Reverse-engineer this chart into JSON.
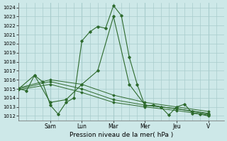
{
  "xlabel": "Pression niveau de la mer( hPa )",
  "background_color": "#cde8e8",
  "grid_color": "#a8cccc",
  "line_color": "#2d6a2d",
  "ylim": [
    1011.5,
    1024.5
  ],
  "yticks": [
    1012,
    1013,
    1014,
    1015,
    1016,
    1017,
    1018,
    1019,
    1020,
    1021,
    1022,
    1023,
    1024
  ],
  "day_labels": [
    "Sam",
    "Lun",
    "Mar",
    "Mer",
    "Jeu",
    "V"
  ],
  "day_positions": [
    24,
    48,
    72,
    96,
    120,
    144
  ],
  "xlim": [
    0,
    156
  ],
  "series1_x": [
    0,
    6,
    12,
    18,
    24,
    30,
    36,
    42,
    48,
    54,
    60,
    66,
    72,
    78,
    84,
    90,
    96,
    102,
    108,
    114,
    120,
    126,
    132,
    138,
    144
  ],
  "series1_y": [
    1015.0,
    1014.8,
    1016.5,
    1015.8,
    1013.2,
    1012.2,
    1013.5,
    1014.0,
    1020.3,
    1021.3,
    1021.9,
    1021.7,
    1024.2,
    1023.1,
    1018.5,
    1015.5,
    1013.1,
    1013.2,
    1013.0,
    1012.1,
    1013.0,
    1013.3,
    1012.3,
    1012.2,
    1012.0
  ],
  "series2_x": [
    0,
    12,
    24,
    36,
    48,
    60,
    72,
    84,
    96,
    108,
    120,
    132,
    144
  ],
  "series2_y": [
    1015.0,
    1016.5,
    1013.5,
    1013.8,
    1015.5,
    1017.0,
    1023.0,
    1015.5,
    1013.2,
    1013.0,
    1012.8,
    1012.5,
    1012.2
  ],
  "series3_x": [
    0,
    24,
    48,
    72,
    96,
    120,
    144
  ],
  "series3_y": [
    1015.1,
    1016.0,
    1015.5,
    1014.3,
    1013.5,
    1013.0,
    1012.5
  ],
  "series4_x": [
    0,
    24,
    48,
    72,
    96,
    120,
    144
  ],
  "series4_y": [
    1015.0,
    1015.8,
    1015.0,
    1013.8,
    1013.2,
    1012.8,
    1012.3
  ],
  "series5_x": [
    0,
    24,
    48,
    72,
    96,
    120,
    144
  ],
  "series5_y": [
    1014.9,
    1015.5,
    1014.6,
    1013.5,
    1013.0,
    1012.6,
    1012.1
  ]
}
